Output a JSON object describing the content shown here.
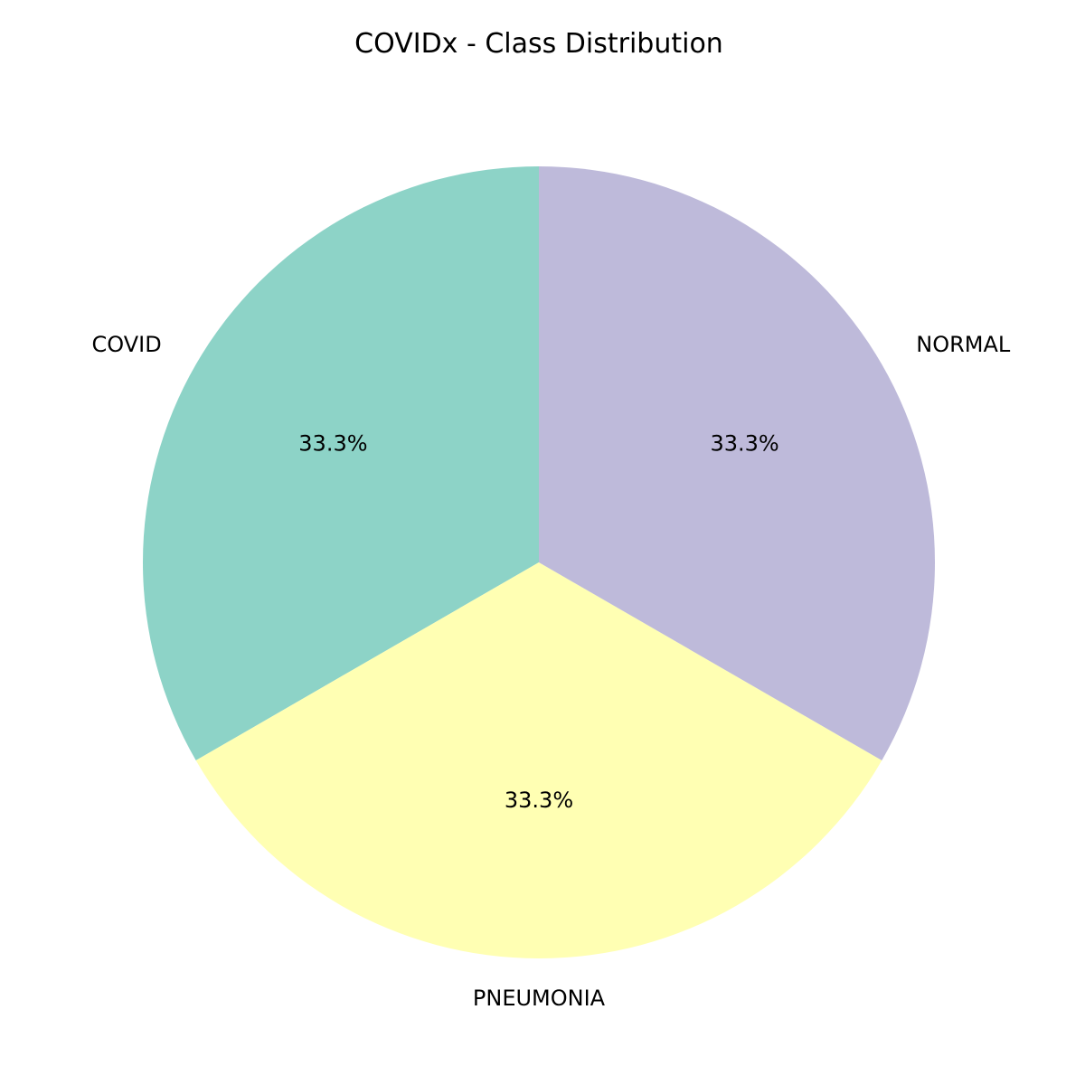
{
  "chart_data": {
    "type": "pie",
    "title": "COVIDx - Class Distribution",
    "slices": [
      {
        "label": "COVID",
        "value": 33.3,
        "pct_label": "33.3%",
        "color": "#8dd3c7"
      },
      {
        "label": "PNEUMONIA",
        "value": 33.3,
        "pct_label": "33.3%",
        "color": "#ffffb3"
      },
      {
        "label": "NORMAL",
        "value": 33.3,
        "pct_label": "33.3%",
        "color": "#bebada"
      }
    ],
    "start_angle_deg": 90,
    "direction": "counterclockwise"
  }
}
